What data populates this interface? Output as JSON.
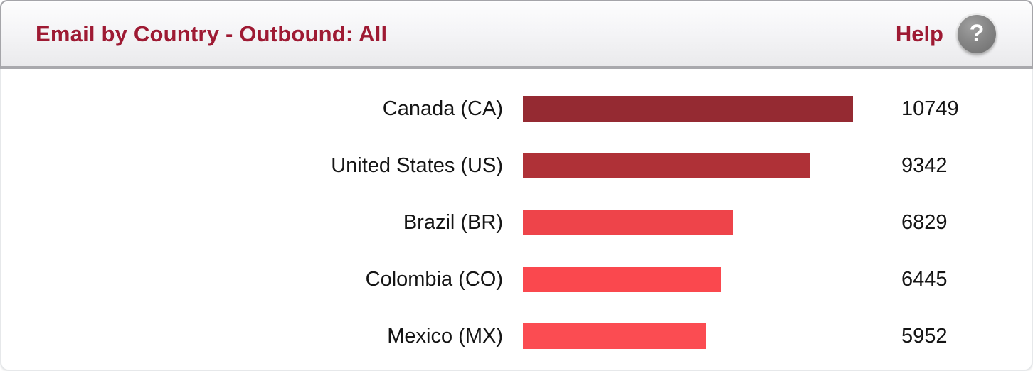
{
  "panel": {
    "header": {
      "title": "Email by Country - Outbound: All",
      "help_label": "Help",
      "help_icon_glyph": "?",
      "title_color": "#9e1a33"
    }
  },
  "chart_data": {
    "type": "bar",
    "orientation": "horizontal",
    "title": "Email by Country - Outbound: All",
    "categories": [
      "Canada (CA)",
      "United States (US)",
      "Brazil (BR)",
      "Colombia (CO)",
      "Mexico (MX)"
    ],
    "values": [
      10749,
      9342,
      6829,
      6445,
      5952
    ],
    "value_labels": [
      "10749",
      "9342",
      "6829",
      "6445",
      "5952"
    ],
    "bar_colors": [
      "#952a32",
      "#af3137",
      "#ee444a",
      "#fa484e",
      "#fb4c52"
    ],
    "xlim": [
      0,
      10749
    ],
    "grid": false,
    "axes_shown": false,
    "legend": null,
    "value_labels_position": "right-of-bar"
  }
}
